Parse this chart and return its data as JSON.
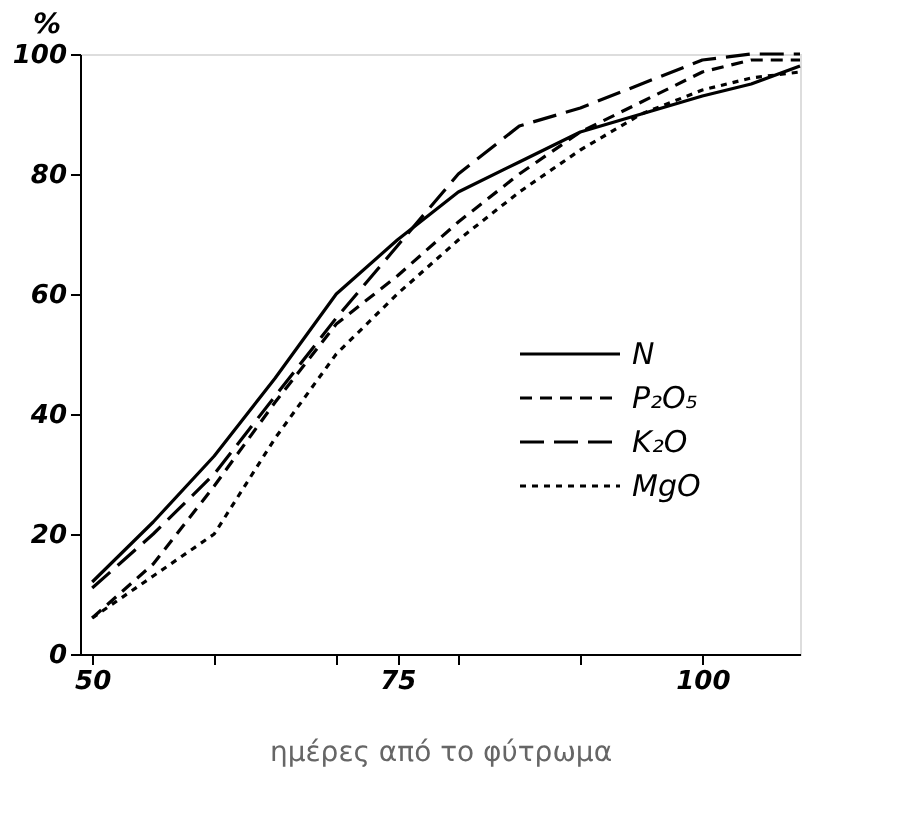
{
  "chart_data": {
    "type": "line",
    "xlabel": "ημέρες από το φύτρωμα",
    "ylabel": "%",
    "xlim": [
      49,
      108
    ],
    "xticks": [
      50,
      {
        "value": 60,
        "label": null
      },
      {
        "value": 70,
        "label": null
      },
      75,
      {
        "value": 80,
        "label": null
      },
      {
        "value": 90,
        "label": null
      },
      100
    ],
    "ylim": [
      0,
      100
    ],
    "yticks": [
      0,
      20,
      40,
      60,
      80,
      100
    ],
    "x": [
      50,
      55,
      60,
      65,
      70,
      75,
      80,
      85,
      90,
      95,
      100,
      104,
      108
    ],
    "series": [
      {
        "name": "N",
        "color": "#000000",
        "line_style": "solid",
        "values": [
          12,
          22,
          33,
          46,
          60,
          69,
          77,
          82,
          87,
          90,
          93,
          95,
          98
        ]
      },
      {
        "name": "P₂O₅",
        "color": "#000000",
        "line_style": "dashed",
        "values": [
          6,
          15,
          28,
          42,
          55,
          63,
          72,
          80,
          87,
          92,
          97,
          99,
          99
        ]
      },
      {
        "name": "K₂O",
        "color": "#000000",
        "line_style": "longdash",
        "values": [
          11,
          20,
          30,
          43,
          56,
          68,
          80,
          88,
          91,
          95,
          99,
          100,
          100
        ]
      },
      {
        "name": "MgO",
        "color": "#000000",
        "line_style": "dotted",
        "values": [
          6,
          13,
          20,
          36,
          50,
          60,
          69,
          77,
          84,
          90,
          94,
          96,
          97
        ]
      }
    ],
    "grid": false,
    "legend": "right"
  }
}
